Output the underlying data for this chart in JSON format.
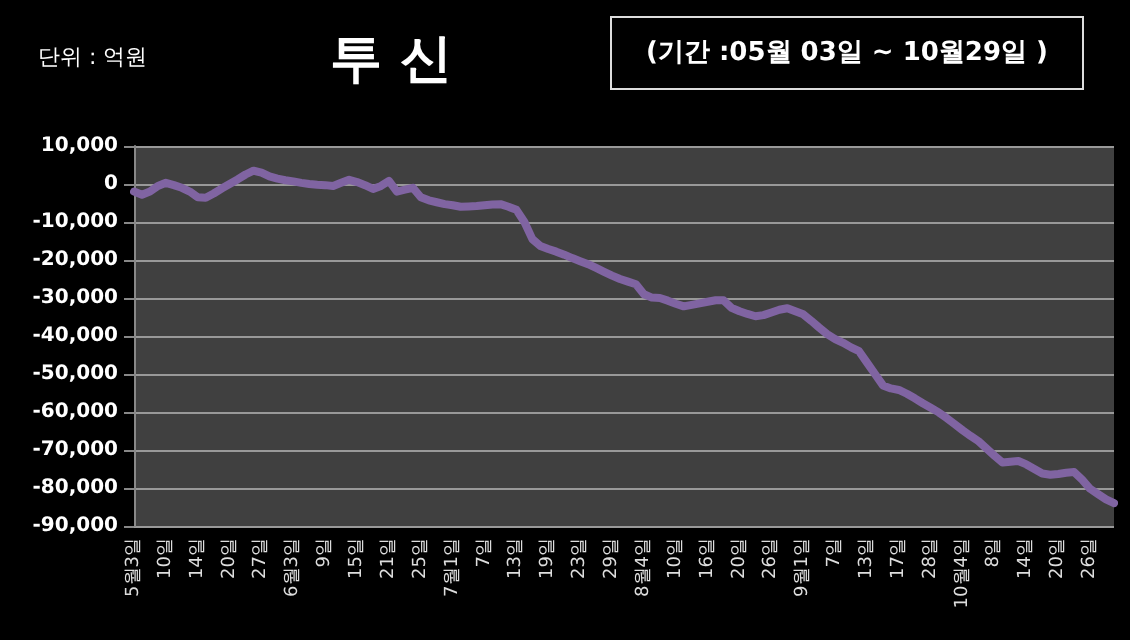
{
  "chart_data": {
    "type": "line",
    "title": "투 신",
    "subtitle": "(기간 :05월 03일 ~ 10월29일 )",
    "ylabel": "단위 : 억원",
    "categories": [
      "5월3일",
      null,
      null,
      null,
      "10일",
      null,
      null,
      null,
      "14일",
      null,
      null,
      null,
      "20일",
      null,
      null,
      null,
      "27일",
      null,
      null,
      null,
      "6월3일",
      null,
      null,
      null,
      "9일",
      null,
      null,
      null,
      "15일",
      null,
      null,
      null,
      "21일",
      null,
      null,
      null,
      "25일",
      null,
      null,
      null,
      "7월1일",
      null,
      null,
      null,
      "7일",
      null,
      null,
      null,
      "13일",
      null,
      null,
      null,
      "19일",
      null,
      null,
      null,
      "23일",
      null,
      null,
      null,
      "29일",
      null,
      null,
      null,
      "8월4일",
      null,
      null,
      null,
      "10일",
      null,
      null,
      null,
      "16일",
      null,
      null,
      null,
      "20일",
      null,
      null,
      null,
      "26일",
      null,
      null,
      null,
      "9월1일",
      null,
      null,
      null,
      "7일",
      null,
      null,
      null,
      "13일",
      null,
      null,
      null,
      "17일",
      null,
      null,
      null,
      "28일",
      null,
      null,
      null,
      "10월4일",
      null,
      null,
      null,
      "8일",
      null,
      null,
      null,
      "14일",
      null,
      null,
      null,
      "20일",
      null,
      null,
      null,
      "26일",
      null,
      null,
      null
    ],
    "series": [
      {
        "color": "#8064a2",
        "values": [
          -2000,
          -2800,
          -2000,
          -500,
          300,
          -300,
          -1000,
          -2000,
          -3500,
          -3600,
          -2500,
          -1200,
          0,
          1200,
          2500,
          3500,
          3000,
          2000,
          1400,
          1000,
          700,
          300,
          0,
          -200,
          -300,
          -500,
          300,
          1100,
          500,
          -300,
          -1300,
          -500,
          800,
          -2000,
          -1500,
          -1000,
          -3500,
          -4300,
          -4800,
          -5300,
          -5600,
          -6000,
          -5900,
          -5800,
          -5600,
          -5400,
          -5300,
          -6000,
          -6800,
          -10000,
          -14500,
          -16300,
          -17100,
          -17800,
          -18600,
          -19500,
          -20300,
          -21100,
          -22100,
          -23100,
          -24100,
          -25000,
          -25700,
          -26400,
          -29000,
          -29900,
          -30000,
          -30700,
          -31500,
          -32200,
          -31800,
          -31400,
          -31000,
          -30600,
          -30600,
          -32600,
          -33500,
          -34200,
          -34800,
          -34500,
          -33800,
          -33100,
          -32700,
          -33500,
          -34300,
          -36000,
          -37800,
          -39500,
          -40800,
          -41800,
          -43000,
          -44000,
          -47000,
          -50000,
          -53000,
          -53800,
          -54200,
          -55200,
          -56400,
          -57700,
          -58900,
          -60100,
          -61600,
          -63200,
          -64800,
          -66300,
          -67700,
          -69600,
          -71500,
          -73300,
          -73100,
          -72900,
          -73800,
          -75000,
          -76200,
          -76500,
          -76300,
          -76000,
          -75800,
          -77800,
          -80200,
          -81600,
          -83000,
          -84000
        ]
      }
    ],
    "ylim": [
      -90000,
      10000
    ],
    "yticks": [
      {
        "value": -90000,
        "label": "-90,000"
      },
      {
        "value": -80000,
        "label": "-80,000"
      },
      {
        "value": -70000,
        "label": "-70,000"
      },
      {
        "value": -60000,
        "label": "-60,000"
      },
      {
        "value": -50000,
        "label": "-50,000"
      },
      {
        "value": -40000,
        "label": "-40,000"
      },
      {
        "value": -30000,
        "label": "-30,000"
      },
      {
        "value": -20000,
        "label": "-20,000"
      },
      {
        "value": -10000,
        "label": "-10,000"
      },
      {
        "value": 0,
        "label": "0"
      },
      {
        "value": 10000,
        "label": "10,000"
      }
    ],
    "grid": "y"
  }
}
